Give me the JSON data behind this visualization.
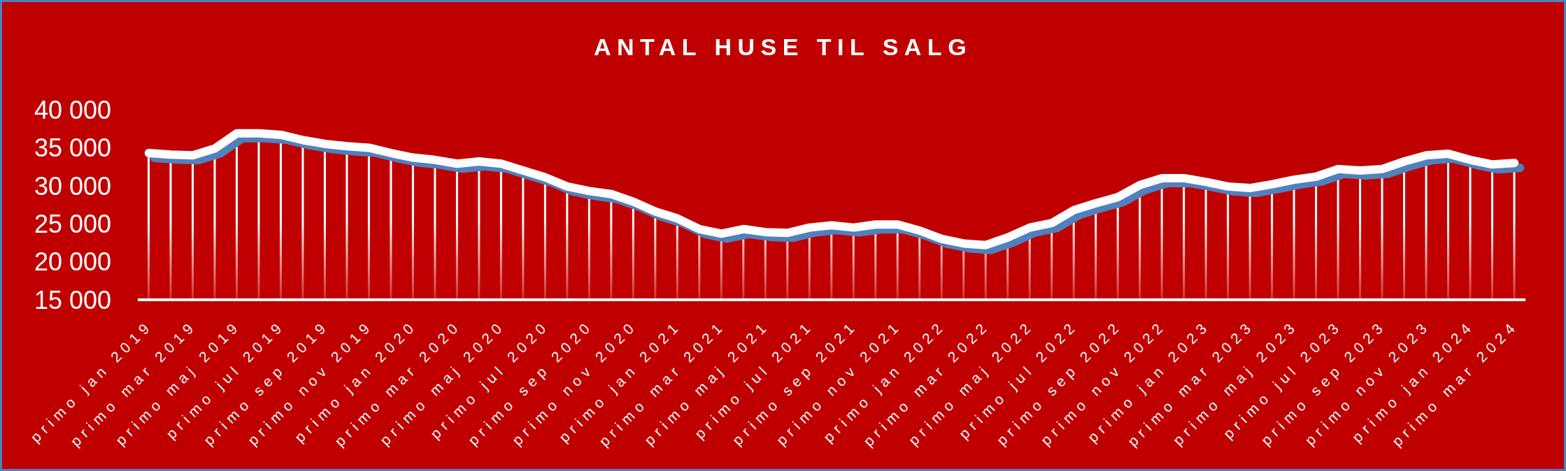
{
  "chart_data": {
    "type": "line",
    "title": "ANTAL HUSE TIL SALG",
    "categories": [
      "primo jan 2019",
      null,
      "primo mar 2019",
      null,
      "primo maj 2019",
      null,
      "primo jul 2019",
      null,
      "primo sep 2019",
      null,
      "primo nov 2019",
      null,
      "primo jan 2020",
      null,
      "primo mar 2020",
      null,
      "primo maj 2020",
      null,
      "primo jul 2020",
      null,
      "primo sep 2020",
      null,
      "primo nov 2020",
      null,
      "primo jan 2021",
      null,
      "primo mar 2021",
      null,
      "primo maj 2021",
      null,
      "primo jul 2021",
      null,
      "primo sep 2021",
      null,
      "primo nov 2021",
      null,
      "primo jan 2022",
      null,
      "primo mar 2022",
      null,
      "primo maj 2022",
      null,
      "primo jul 2022",
      null,
      "primo sep 2022",
      null,
      "primo nov 2022",
      null,
      "primo jan 2023",
      null,
      "primo mar 2023",
      null,
      "primo maj 2023",
      null,
      "primo jul 2023",
      null,
      "primo sep 2023",
      null,
      "primo nov 2023",
      null,
      "primo jan 2024",
      null,
      "primo mar 2024"
    ],
    "series": [
      {
        "color": "#ffffff",
        "values": [
          34300,
          34100,
          34000,
          34900,
          36900,
          36900,
          36700,
          36000,
          35500,
          35200,
          35000,
          34300,
          33700,
          33400,
          32900,
          33200,
          32900,
          32000,
          31100,
          29900,
          29300,
          28900,
          27900,
          26600,
          25700,
          24300,
          23700,
          24300,
          23900,
          23800,
          24500,
          24800,
          24500,
          24900,
          24900,
          24100,
          23000,
          22400,
          22200,
          23200,
          24500,
          25100,
          26800,
          27700,
          28500,
          30100,
          31000,
          31000,
          30500,
          29900,
          29700,
          30200,
          30800,
          31200,
          32200,
          32000,
          32200,
          33200,
          34000,
          34200,
          33400,
          32800,
          33000
        ]
      },
      {
        "type": "bar",
        "color": "#ffffff",
        "values": [
          34300,
          34100,
          34000,
          34900,
          36900,
          36900,
          36700,
          36000,
          35500,
          35200,
          35000,
          34300,
          33700,
          33400,
          32900,
          33200,
          32900,
          32000,
          31100,
          29900,
          29300,
          28900,
          27900,
          26600,
          25700,
          24300,
          23700,
          24300,
          23900,
          23800,
          24500,
          24800,
          24500,
          24900,
          24900,
          24100,
          23000,
          22400,
          22200,
          23200,
          24500,
          25100,
          26800,
          27700,
          28500,
          30100,
          31000,
          31000,
          30500,
          29900,
          29700,
          30200,
          30800,
          31200,
          32200,
          32000,
          32200,
          33200,
          34000,
          34200,
          33400,
          32800,
          33000
        ]
      }
    ],
    "ylim": [
      15000,
      40000
    ],
    "yticks": [
      {
        "value": 15000,
        "label": "15 000"
      },
      {
        "value": 20000,
        "label": "20 000"
      },
      {
        "value": 25000,
        "label": "25 000"
      },
      {
        "value": 30000,
        "label": "30 000"
      },
      {
        "value": 35000,
        "label": "35 000"
      },
      {
        "value": 40000,
        "label": "40 000"
      }
    ],
    "marker": "none",
    "line_style": "solid"
  }
}
